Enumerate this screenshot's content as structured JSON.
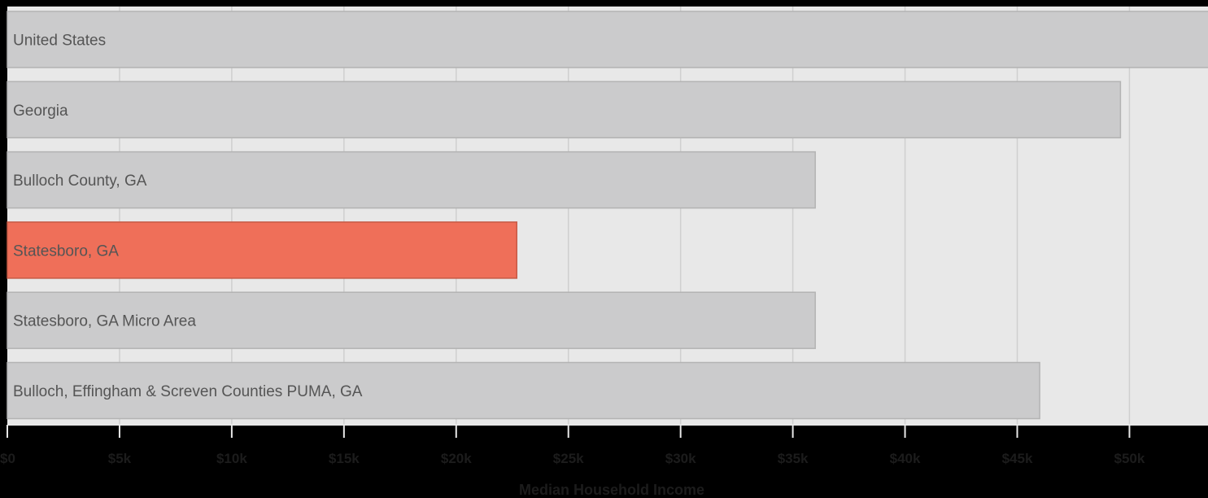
{
  "chart_data": {
    "type": "bar",
    "orientation": "horizontal",
    "categories": [
      "United States",
      "Georgia",
      "Bulloch County, GA",
      "Statesboro, GA",
      "Statesboro, GA Micro Area",
      "Bulloch, Effingham & Screven Counties PUMA, GA"
    ],
    "values": [
      55300,
      49600,
      36000,
      22700,
      36000,
      46000
    ],
    "highlight_category": "Statesboro, GA",
    "xlabel": "Median Household Income",
    "ylabel": "",
    "xlim": [
      0,
      53500
    ],
    "x_ticks": [
      0,
      5000,
      10000,
      15000,
      20000,
      25000,
      30000,
      35000,
      40000,
      45000,
      50000
    ],
    "x_tick_labels": [
      "$0",
      "$5k",
      "$10k",
      "$15k",
      "$20k",
      "$25k",
      "$30k",
      "$35k",
      "$40k",
      "$45k",
      "$50k"
    ],
    "grid": true,
    "legend": "none",
    "colors": {
      "bar": "#cbcbcc",
      "bar_stroke": "#b3b3b3",
      "highlight": "#ef6f59",
      "highlight_stroke": "#c65a46",
      "plot_background": "#e8e8e8",
      "page_background": "#000000",
      "gridline": "#cfcfcf"
    }
  }
}
